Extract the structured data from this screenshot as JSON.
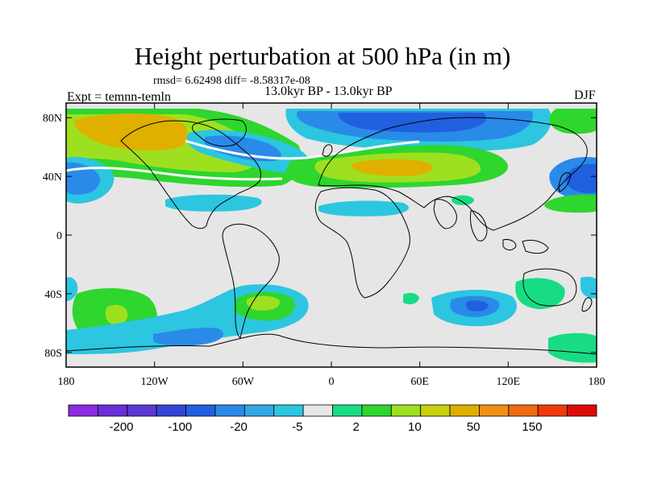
{
  "header": {
    "title": "Height perturbation at 500 hPa (in m)",
    "stats": "rmsd= 6.62498 diff= -8.58317e-08",
    "experiment": "Expt = temnn-temln",
    "period": "13.0kyr BP - 13.0kyr BP",
    "season": "DJF"
  },
  "map": {
    "lat_ticks": [
      {
        "value": 80,
        "label": "80N"
      },
      {
        "value": 40,
        "label": "40N"
      },
      {
        "value": 0,
        "label": "0"
      },
      {
        "value": -40,
        "label": "40S"
      },
      {
        "value": -80,
        "label": "80S"
      }
    ],
    "lon_ticks": [
      {
        "value": -180,
        "label": "180"
      },
      {
        "value": -120,
        "label": "120W"
      },
      {
        "value": -60,
        "label": "60W"
      },
      {
        "value": 0,
        "label": "0"
      },
      {
        "value": 60,
        "label": "60E"
      },
      {
        "value": 120,
        "label": "120E"
      },
      {
        "value": 180,
        "label": "180"
      }
    ],
    "lat_range": [
      -90,
      90
    ],
    "lon_range": [
      -180,
      180
    ]
  },
  "colorbar": {
    "colors": [
      "#8a2be2",
      "#6a2fd8",
      "#5a3ad4",
      "#3446d8",
      "#2060e0",
      "#2a8ae8",
      "#32a8e6",
      "#2cc6e0",
      "#e6e6e6",
      "#18dc84",
      "#2ed62e",
      "#9ee020",
      "#c8d010",
      "#e0b000",
      "#f09014",
      "#f06a10",
      "#f03a0a",
      "#e00a0a"
    ],
    "labels": [
      {
        "index": 1,
        "text": "-200"
      },
      {
        "index": 3,
        "text": "-100"
      },
      {
        "index": 5,
        "text": "-20"
      },
      {
        "index": 7,
        "text": "-5"
      },
      {
        "index": 9,
        "text": "2"
      },
      {
        "index": 11,
        "text": "10"
      },
      {
        "index": 13,
        "text": "50"
      },
      {
        "index": 15,
        "text": "150"
      }
    ]
  }
}
